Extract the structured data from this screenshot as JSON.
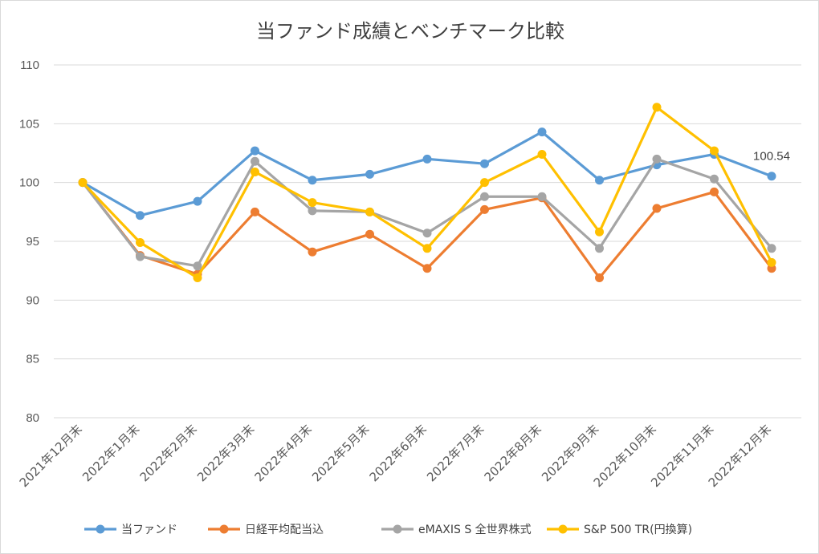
{
  "chart_data": {
    "type": "line",
    "title": "当ファンド成績とベンチマーク比較",
    "categories": [
      "2021年12月末",
      "2022年1月末",
      "2022年2月末",
      "2022年3月末",
      "2022年4月末",
      "2022年5月末",
      "2022年6月末",
      "2022年7月末",
      "2022年8月末",
      "2022年9月末",
      "2022年10月末",
      "2022年11月末",
      "2022年12月末"
    ],
    "ylim": [
      80,
      110
    ],
    "yticks": [
      80,
      85,
      90,
      95,
      100,
      105,
      110
    ],
    "grid": true,
    "legend_position": "bottom",
    "series": [
      {
        "name": "当ファンド",
        "color": "#5B9BD5",
        "values": [
          100,
          97.2,
          98.4,
          102.7,
          100.2,
          100.7,
          102.0,
          101.6,
          104.3,
          100.2,
          101.5,
          102.4,
          100.54
        ]
      },
      {
        "name": "日経平均配当込",
        "color": "#ED7D31",
        "values": [
          100,
          93.8,
          92.2,
          97.5,
          94.1,
          95.6,
          92.7,
          97.7,
          98.7,
          91.9,
          97.8,
          99.2,
          92.7
        ]
      },
      {
        "name": "eMAXIS S 全世界株式",
        "color": "#A5A5A5",
        "values": [
          100,
          93.7,
          92.9,
          101.8,
          97.6,
          97.5,
          95.7,
          98.8,
          98.8,
          94.4,
          102.0,
          100.3,
          94.4
        ]
      },
      {
        "name": "S&P 500 TR(円換算)",
        "color": "#FFC000",
        "values": [
          100,
          94.9,
          91.9,
          100.9,
          98.3,
          97.5,
          94.4,
          100.0,
          102.4,
          95.8,
          106.4,
          102.7,
          93.2
        ]
      }
    ],
    "data_labels": [
      {
        "series": 0,
        "index": 12,
        "text": "100.54"
      }
    ]
  }
}
